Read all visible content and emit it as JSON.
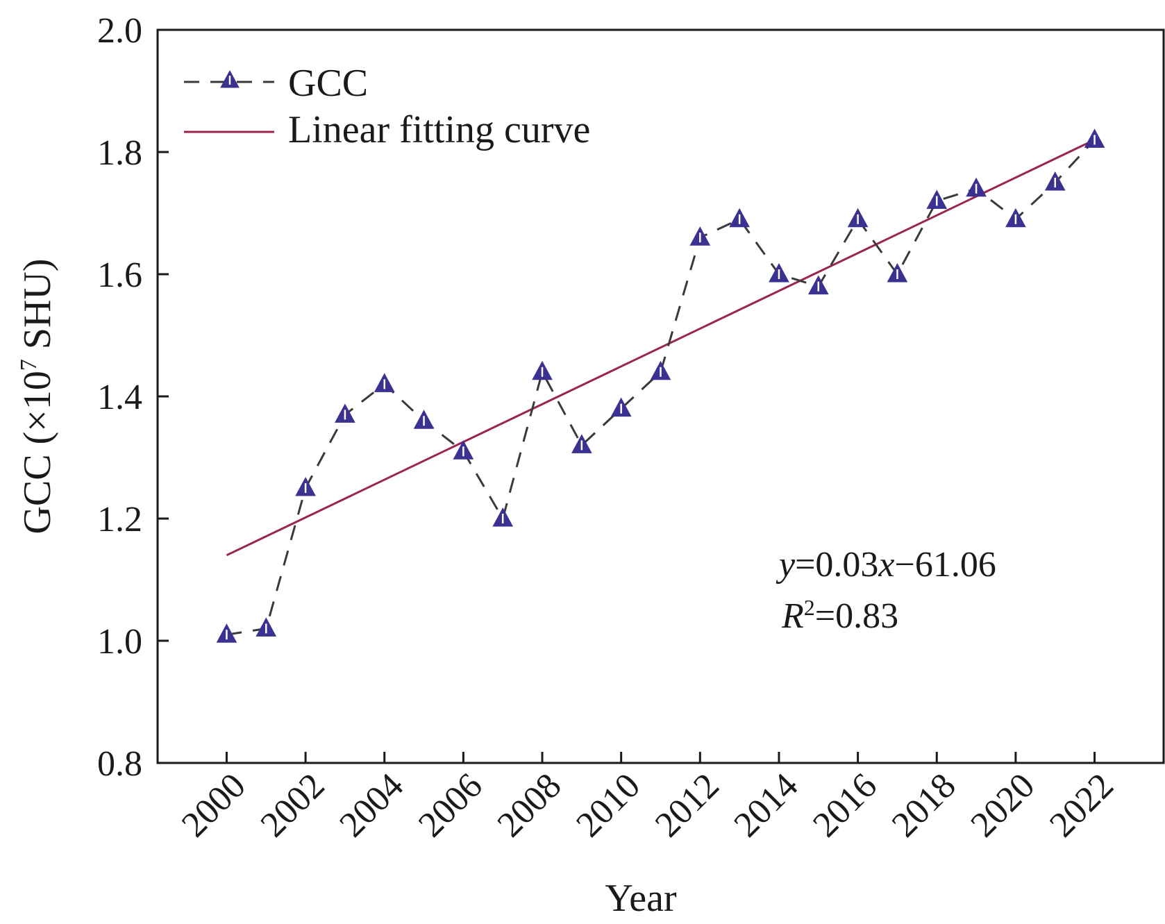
{
  "chart_data": {
    "type": "line",
    "xlabel": "Year",
    "ylabel": "GCC (×10⁷ SHU)",
    "ylabel_parts": {
      "prefix": "GCC (×10",
      "sup": "7",
      "suffix": " SHU)"
    },
    "xlim": [
      1998.25,
      2023.75
    ],
    "ylim": [
      0.8,
      2.0
    ],
    "x_ticks": [
      2000,
      2002,
      2004,
      2006,
      2008,
      2010,
      2012,
      2014,
      2016,
      2018,
      2020,
      2022
    ],
    "x_tick_labels": [
      "2000",
      "2002",
      "2004",
      "2006",
      "2008",
      "2010",
      "2012",
      "2014",
      "2016",
      "2018",
      "2020",
      "2022"
    ],
    "y_ticks": [
      0.8,
      1.0,
      1.2,
      1.4,
      1.6,
      1.8,
      2.0
    ],
    "y_tick_labels": [
      "0.8",
      "1.0",
      "1.2",
      "1.4",
      "1.6",
      "1.8",
      "2.0"
    ],
    "grid": false,
    "legend_position": "top-left",
    "series": [
      {
        "name": "GCC",
        "style": "dashed-with-triangle-markers",
        "line_color": "#3a3a3a",
        "marker_color": "#3b3190",
        "x": [
          2000,
          2001,
          2002,
          2003,
          2004,
          2005,
          2006,
          2007,
          2008,
          2009,
          2010,
          2011,
          2012,
          2013,
          2014,
          2015,
          2016,
          2017,
          2018,
          2019,
          2020,
          2021,
          2022
        ],
        "y": [
          1.01,
          1.02,
          1.25,
          1.37,
          1.42,
          1.36,
          1.31,
          1.2,
          1.44,
          1.32,
          1.38,
          1.44,
          1.66,
          1.69,
          1.6,
          1.58,
          1.69,
          1.6,
          1.72,
          1.74,
          1.69,
          1.75,
          1.82
        ]
      },
      {
        "name": "Linear fitting curve",
        "style": "solid",
        "line_color": "#9b2452",
        "x": [
          2000,
          2022
        ],
        "y": [
          1.14,
          1.82
        ]
      }
    ],
    "annotations": {
      "equation": {
        "y": "y",
        "eq1": "=0.03",
        "x": "x",
        "rest": "−61.06"
      },
      "r2": {
        "r": "R",
        "sup": "2",
        "rest": "=0.83"
      }
    }
  }
}
